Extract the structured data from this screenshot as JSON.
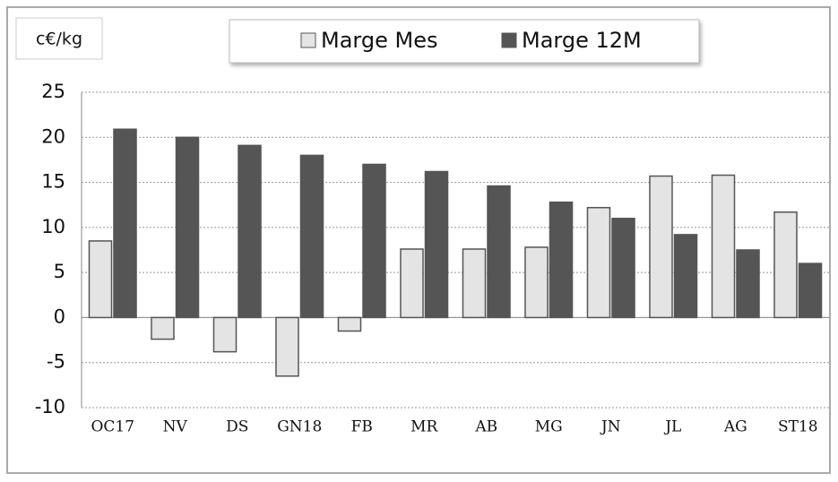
{
  "chart_data": {
    "type": "bar",
    "y_label": "c€/kg",
    "categories": [
      "OC17",
      "NV",
      "DS",
      "GN18",
      "FB",
      "MR",
      "AB",
      "MG",
      "JN",
      "JL",
      "AG",
      "ST18"
    ],
    "series": [
      {
        "name": "Marge Mes",
        "color": "#e4e4e4",
        "values": [
          8.5,
          -2.4,
          -3.8,
          -6.5,
          -1.5,
          7.6,
          7.6,
          7.8,
          12.2,
          15.7,
          15.8,
          11.7
        ]
      },
      {
        "name": "Marge 12M",
        "color": "#555555",
        "values": [
          20.9,
          20,
          19.1,
          18,
          17,
          16.2,
          14.6,
          12.8,
          11,
          9.2,
          7.5,
          6
        ]
      }
    ],
    "ylim": [
      -10,
      25
    ],
    "yticks": [
      -10,
      -5,
      0,
      5,
      10,
      15,
      20,
      25
    ],
    "grid": true,
    "legend": "top"
  }
}
